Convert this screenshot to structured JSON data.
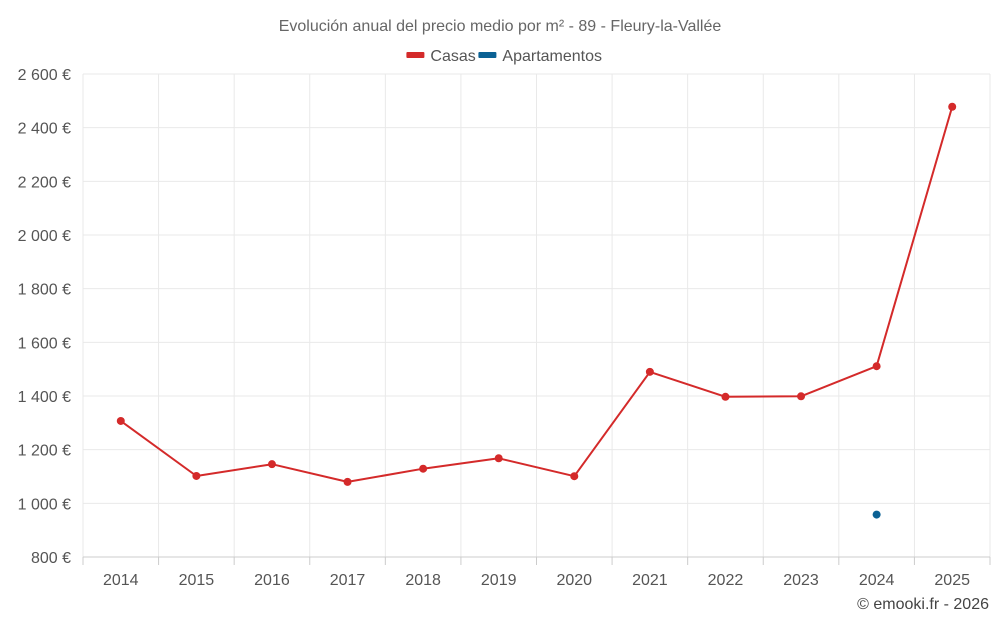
{
  "chart_data": {
    "type": "line",
    "title": "Evolución anual del precio medio por m² - 89 - Fleury-la-Vallée",
    "categories": [
      "2014",
      "2015",
      "2016",
      "2017",
      "2018",
      "2019",
      "2020",
      "2021",
      "2022",
      "2023",
      "2024",
      "2025"
    ],
    "series": [
      {
        "name": "Casas",
        "color": "#d42a2a",
        "values": [
          1307,
          1102,
          1146,
          1080,
          1129,
          1168,
          1101,
          1490,
          1397,
          1399,
          1511,
          2478
        ]
      },
      {
        "name": "Apartamentos",
        "color": "#0b6194",
        "values": [
          null,
          null,
          null,
          null,
          null,
          null,
          null,
          null,
          null,
          null,
          958,
          null
        ]
      }
    ],
    "ylim": [
      800,
      2600
    ],
    "yticks": [
      800,
      1000,
      1200,
      1400,
      1600,
      1800,
      2000,
      2200,
      2400,
      2600
    ],
    "ytick_labels": [
      "800 €",
      "1 000 €",
      "1 200 €",
      "1 400 €",
      "1 600 €",
      "1 800 €",
      "2 000 €",
      "2 200 €",
      "2 400 €",
      "2 600 €"
    ],
    "xlabel": "",
    "ylabel": "",
    "grid": true,
    "legend_position": "top-center"
  },
  "credit": "© emooki.fr - 2026"
}
